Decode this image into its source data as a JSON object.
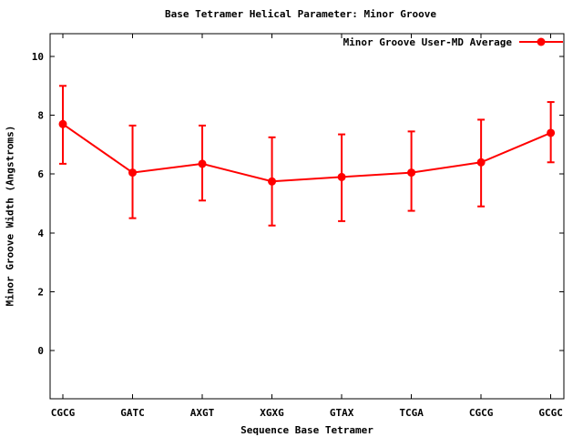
{
  "chart_data": {
    "type": "line",
    "title": "Base Tetramer Helical Parameter: Minor Groove",
    "xlabel": "Sequence Base Tetramer",
    "ylabel": "Minor Groove Width (Angstroms)",
    "legend": {
      "label": "Minor Groove User-MD Average",
      "position": "top-right-inside"
    },
    "categories": [
      "CGCG",
      "GATC",
      "AXGT",
      "XGXG",
      "GTAX",
      "TCGA",
      "CGCG",
      "GCGC"
    ],
    "series": [
      {
        "name": "Minor Groove User-MD Average",
        "color": "#ff0000",
        "marker": "filled-circle",
        "style": "line-with-yerrorbars",
        "values": [
          7.7,
          6.05,
          6.35,
          5.75,
          5.9,
          6.05,
          6.4,
          7.4
        ],
        "error_low": [
          6.35,
          4.5,
          5.1,
          4.25,
          4.4,
          4.75,
          4.9,
          6.4
        ],
        "error_high": [
          9.0,
          7.65,
          7.65,
          7.25,
          7.35,
          7.45,
          7.85,
          8.45
        ]
      }
    ],
    "yticks": [
      0,
      2,
      4,
      6,
      8,
      10
    ],
    "ylim": [
      -1.65,
      10.8
    ],
    "grid": false,
    "background": "#ffffff",
    "text_color": "#000000"
  }
}
